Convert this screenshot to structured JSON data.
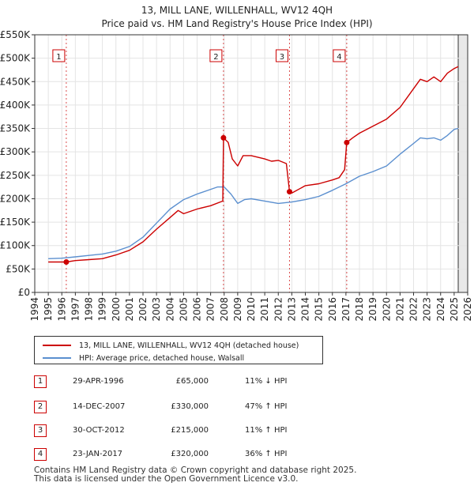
{
  "chart_data": {
    "type": "line",
    "title": "13, MILL LANE, WILLENHALL, WV12 4QH",
    "subtitle": "Price paid vs. HM Land Registry's House Price Index (HPI)",
    "ylim": [
      0,
      550000
    ],
    "xlim": [
      1994,
      2026
    ],
    "y_ticks": [
      0,
      50000,
      100000,
      150000,
      200000,
      250000,
      300000,
      350000,
      400000,
      450000,
      500000,
      550000
    ],
    "y_tick_labels": [
      "£0",
      "£50K",
      "£100K",
      "£150K",
      "£200K",
      "£250K",
      "£300K",
      "£350K",
      "£400K",
      "£450K",
      "£500K",
      "£550K"
    ],
    "x_ticks": [
      1994,
      1995,
      1996,
      1997,
      1998,
      1999,
      2000,
      2001,
      2002,
      2003,
      2004,
      2005,
      2006,
      2007,
      2008,
      2009,
      2010,
      2011,
      2012,
      2013,
      2014,
      2015,
      2016,
      2017,
      2018,
      2019,
      2020,
      2021,
      2022,
      2023,
      2024,
      2025,
      2026
    ],
    "grid": true,
    "series": [
      {
        "name": "13, MILL LANE, WILLENHALL, WV12 4QH (detached house)",
        "color": "#cc0000",
        "x": [
          1995.0,
          1996.0,
          1996.33,
          1997.0,
          1998.0,
          1999.0,
          2000.0,
          2001.0,
          2002.0,
          2003.0,
          2004.0,
          2004.6,
          2005.0,
          2006.0,
          2007.0,
          2007.9,
          2007.95,
          2008.3,
          2008.6,
          2009.0,
          2009.4,
          2010.0,
          2011.0,
          2011.5,
          2012.0,
          2012.6,
          2012.83,
          2013.0,
          2014.0,
          2015.0,
          2016.0,
          2016.5,
          2016.9,
          2017.06,
          2017.5,
          2018.0,
          2019.0,
          2020.0,
          2021.0,
          2022.0,
          2022.5,
          2023.0,
          2023.5,
          2024.0,
          2024.5,
          2025.0,
          2025.3
        ],
        "y": [
          65000,
          65000,
          65000,
          68000,
          70000,
          72000,
          80000,
          90000,
          108000,
          135000,
          160000,
          175000,
          168000,
          178000,
          185000,
          195000,
          330000,
          320000,
          285000,
          270000,
          292000,
          292000,
          285000,
          280000,
          282000,
          275000,
          215000,
          212000,
          228000,
          232000,
          240000,
          245000,
          262000,
          320000,
          330000,
          340000,
          355000,
          370000,
          395000,
          435000,
          455000,
          450000,
          460000,
          450000,
          468000,
          478000,
          482000
        ]
      },
      {
        "name": "HPI: Average price, detached house, Walsall",
        "color": "#5b8fcf",
        "x": [
          1995.0,
          1996.0,
          1997.0,
          1998.0,
          1999.0,
          2000.0,
          2001.0,
          2002.0,
          2003.0,
          2004.0,
          2005.0,
          2006.0,
          2007.0,
          2007.5,
          2008.0,
          2008.5,
          2009.0,
          2009.5,
          2010.0,
          2011.0,
          2012.0,
          2013.0,
          2014.0,
          2015.0,
          2016.0,
          2017.0,
          2018.0,
          2019.0,
          2020.0,
          2021.0,
          2022.0,
          2022.5,
          2023.0,
          2023.5,
          2024.0,
          2024.5,
          2025.0,
          2025.3
        ],
        "y": [
          72000,
          73000,
          76000,
          79000,
          82000,
          88000,
          98000,
          118000,
          148000,
          178000,
          198000,
          210000,
          220000,
          225000,
          225000,
          210000,
          190000,
          198000,
          200000,
          195000,
          190000,
          193000,
          198000,
          205000,
          218000,
          232000,
          248000,
          258000,
          270000,
          295000,
          318000,
          330000,
          328000,
          330000,
          325000,
          335000,
          348000,
          350000
        ]
      }
    ],
    "markers": [
      {
        "label": "1",
        "x": 1996.33,
        "y": 65000
      },
      {
        "label": "2",
        "x": 2007.95,
        "y": 330000
      },
      {
        "label": "3",
        "x": 2012.83,
        "y": 215000
      },
      {
        "label": "4",
        "x": 2017.06,
        "y": 320000
      }
    ],
    "shaded_future_from": 2025.3
  },
  "legend": [
    {
      "label": "13, MILL LANE, WILLENHALL, WV12 4QH (detached house)",
      "color": "#cc0000"
    },
    {
      "label": "HPI: Average price, detached house, Walsall",
      "color": "#5b8fcf"
    }
  ],
  "transactions": [
    {
      "num": "1",
      "date": "29-APR-1996",
      "price": "£65,000",
      "hpi": "11% ↓ HPI"
    },
    {
      "num": "2",
      "date": "14-DEC-2007",
      "price": "£330,000",
      "hpi": "47% ↑ HPI"
    },
    {
      "num": "3",
      "date": "30-OCT-2012",
      "price": "£215,000",
      "hpi": "11% ↑ HPI"
    },
    {
      "num": "4",
      "date": "23-JAN-2017",
      "price": "£320,000",
      "hpi": "36% ↑ HPI"
    }
  ],
  "footer": {
    "line1": "Contains HM Land Registry data © Crown copyright and database right 2025.",
    "line2": "This data is licensed under the Open Government Licence v3.0."
  }
}
